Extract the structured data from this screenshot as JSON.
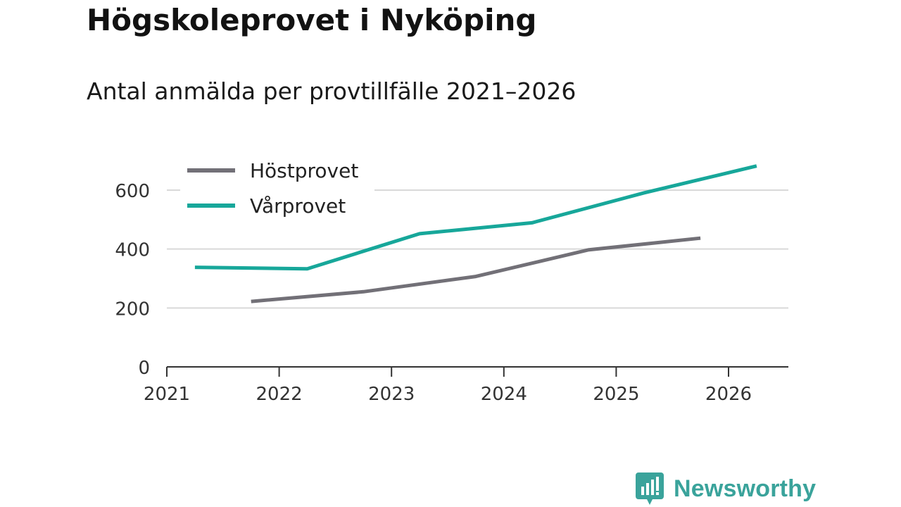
{
  "title": "Högskoleprovet i Nyköping",
  "subtitle": "Antal anmälda per provtillfälle 2021–2026",
  "brand": {
    "name": "Newsworthy",
    "color": "#3aa39b",
    "icon": "bar-chart-speech-bubble-icon"
  },
  "chart_data": {
    "type": "line",
    "title": "Högskoleprovet i Nyköping",
    "subtitle": "Antal anmälda per provtillfälle 2021–2026",
    "xlabel": "",
    "ylabel": "",
    "xlim": [
      2021,
      2026.55
    ],
    "ylim": [
      0,
      720
    ],
    "x_ticks": [
      "2021",
      "2022",
      "2023",
      "2024",
      "2025",
      "2026"
    ],
    "y_ticks": [
      0,
      200,
      400,
      600
    ],
    "grid": true,
    "legend_position": "top-left",
    "series": [
      {
        "name": "Höstprovet",
        "color": "#727077",
        "x": [
          2021.75,
          2022.75,
          2023.75,
          2024.75,
          2025.75
        ],
        "values": [
          222,
          255,
          307,
          397,
          437
        ]
      },
      {
        "name": "Vårprovet",
        "color": "#17a79a",
        "x": [
          2021.25,
          2022.25,
          2023.25,
          2024.25,
          2025.25,
          2026.25
        ],
        "values": [
          338,
          333,
          452,
          489,
          591,
          682
        ]
      }
    ]
  }
}
